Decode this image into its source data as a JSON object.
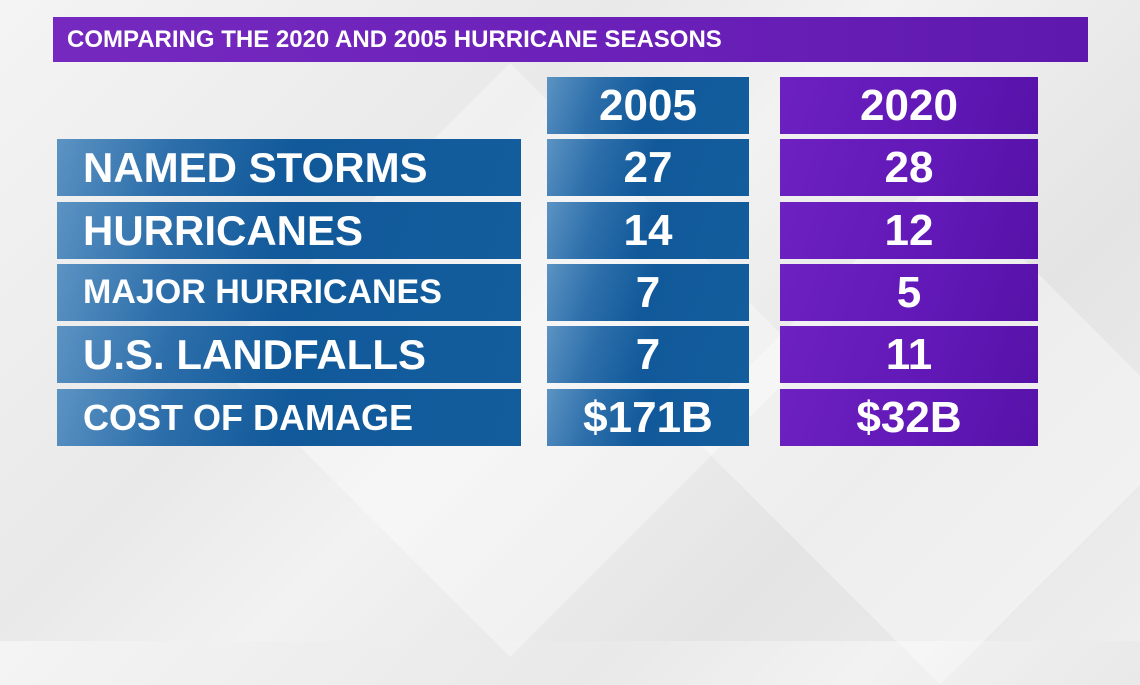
{
  "title": "COMPARING THE 2020 AND 2005 HURRICANE SEASONS",
  "colors": {
    "2005": "#135d9d",
    "2020": "#6118b6",
    "title_bar": "#7026bc"
  },
  "chart_data": {
    "type": "table",
    "title": "COMPARING THE 2020 AND 2005 HURRICANE SEASONS",
    "columns": [
      "2005",
      "2020"
    ],
    "rows": [
      {
        "label": "NAMED STORMS",
        "values": [
          "27",
          "28"
        ]
      },
      {
        "label": "HURRICANES",
        "values": [
          "14",
          "12"
        ]
      },
      {
        "label": "MAJOR HURRICANES",
        "values": [
          "7",
          "5"
        ]
      },
      {
        "label": "U.S. LANDFALLS",
        "values": [
          "7",
          "11"
        ]
      },
      {
        "label": "COST OF DAMAGE",
        "values": [
          "$171B",
          "$32B"
        ]
      }
    ]
  }
}
